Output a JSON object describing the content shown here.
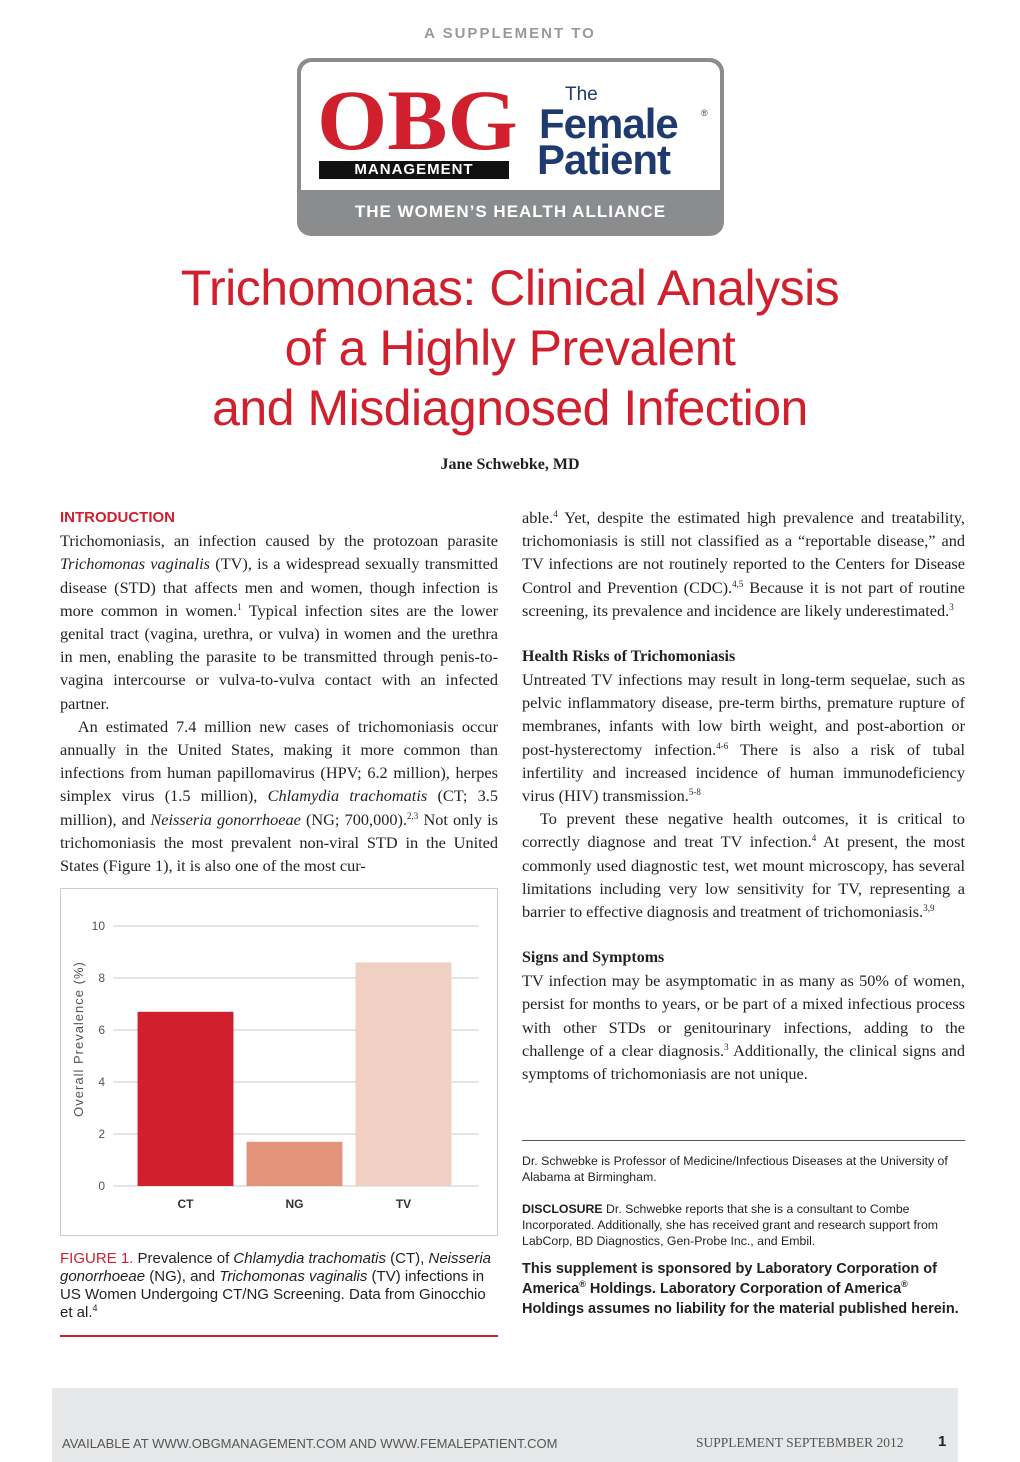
{
  "header": {
    "supplement": "A SUPPLEMENT TO",
    "obg": "OBG",
    "management": "MANAGEMENT",
    "the": "The",
    "female": "Female",
    "reg": "®",
    "patient": "Patient",
    "alliance": "THE WOMEN’S HEALTH ALLIANCE"
  },
  "title": [
    "Trichomonas: Clinical Analysis",
    "of a Highly Prevalent",
    "and Misdiagnosed Infection"
  ],
  "author": "Jane Schwebke, MD",
  "intro": {
    "heading": "INTRODUCTION",
    "p1": [
      "Trichomoniasis, an infection caused by the protozoan parasite ",
      "Trichomonas vaginalis",
      " (TV), is a widespread sexually transmitted disease (STD) that affects men and women, though infection is more common in women.",
      "1",
      " Typical infection sites are the lower genital tract (vagina, urethra, or vulva) in women and the urethra in men, enabling the parasite to be transmitted through penis-to-vagina intercourse or vulva-to-vulva contact with an infected partner."
    ],
    "p2": [
      "An estimated 7.4 million new cases of trichomoniasis occur annually in the United States, making it more common than infections from human papillomavirus (HPV; 6.2 million), herpes simplex virus (1.5 million), ",
      "Chlamydia trachomatis",
      " (CT; 3.5 million), and ",
      "Neisseria gonorrhoeae",
      " (NG; 700,000).",
      "2,3",
      " Not only is trichomoniasis the most prevalent non-viral STD in the United States (Figure 1), it is also one of the most cur-"
    ],
    "p2b": [
      "able.",
      "4",
      " Yet, despite the estimated high prevalence and treatability, trichomoniasis is still not classified as a “reportable disease,” and TV infections are not routinely reported to the Centers for Disease Control and Prevention (CDC).",
      "4,5",
      " Because it is not part of routine screening, its prevalence and incidence are likely underestimated.",
      "3"
    ]
  },
  "health": {
    "heading": "Health Risks of Trichomoniasis",
    "p1": [
      "Untreated TV infections may result in long-term sequelae, such as pelvic inflammatory disease, pre-term births, premature rupture of membranes, infants with low birth weight, and post-abortion or post-hysterectomy infection.",
      "4-6",
      " There is also a risk of tubal infertility and increased incidence of human immunodeficiency virus (HIV) transmission.",
      "5-8"
    ],
    "p2": [
      "To prevent these negative health outcomes, it is critical to correctly diagnose and treat TV infection.",
      "4",
      " At present, the most commonly used diagnostic test, wet mount microscopy, has several limitations including very low sensitivity for TV, representing a barrier to effective diagnosis and treatment of trichomoniasis.",
      "3,9"
    ]
  },
  "signs": {
    "heading": "Signs and Symptoms",
    "p1": [
      "TV infection may be asymptomatic in as many as 50% of women, persist for months to years, or be part of a mixed infectious process with other STDs or genitourinary infections, adding to the challenge of a clear diagnosis.",
      "3",
      " Additionally, the clinical signs and symptoms of trichomoniasis are not unique."
    ]
  },
  "bio": "Dr. Schwebke is Professor of Medicine/Infectious Diseases at the University of Alabama at Birmingham.",
  "disclosure": {
    "label": "DISCLOSURE",
    "text": " Dr. Schwebke reports that she is a consultant to Combe Incorporated. Additionally, she has received grant and research support from LabCorp, BD Diagnostics, Gen-Probe Inc., and Embil."
  },
  "sponsor": [
    "This supplement is sponsored by Laboratory Corporation of America",
    "®",
    " Holdings. Laboratory Corporation of America",
    "®",
    " Holdings assumes no liability for the material published herein."
  ],
  "caption": [
    "FIGURE 1.",
    " Prevalence of ",
    "Chlamydia trachomatis",
    " (CT), ",
    "Neisseria gonorrhoeae",
    " (NG), and ",
    "Trichomonas vaginalis",
    " (TV) infections in US Women Undergoing CT/NG Screening. Data from Ginocchio et al.",
    "4"
  ],
  "chart_data": {
    "type": "bar",
    "y_label": "Overall Prevalence (%)",
    "categories": [
      "CT",
      "NG",
      "TV"
    ],
    "values": [
      6.7,
      1.7,
      8.6
    ],
    "colors": [
      "#d0202e",
      "#e4937b",
      "#f2cfc3"
    ],
    "ylim": [
      0,
      10
    ],
    "yticks": [
      0,
      2,
      4,
      6,
      8,
      10
    ],
    "grid": true
  },
  "footer": {
    "available": "AVAILABLE AT WWW.OBGMANAGEMENT.COM AND WWW.FEMALEPATIENT.COM",
    "supplement": "SUPPLEMENT SEPTEBMBER 2012",
    "page": "1"
  }
}
